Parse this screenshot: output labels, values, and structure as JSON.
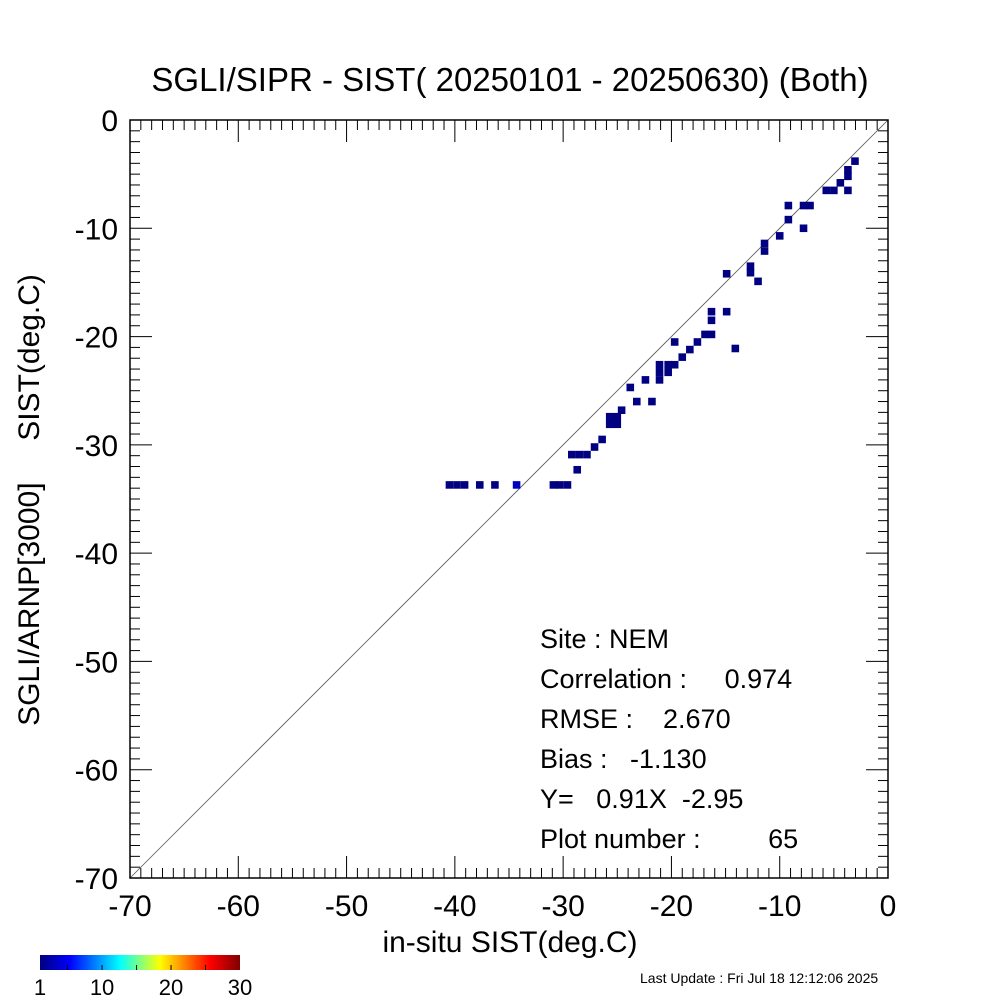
{
  "chart_data": {
    "type": "scatter",
    "title": "SGLI/SIPR - SIST( 20250101 - 20250630) (Both)",
    "xlabel": "in-situ SIST(deg.C)",
    "ylabel": "SGLI/ARNP[3000]     SIST(deg.C)",
    "xlim": [
      -70,
      0
    ],
    "ylim": [
      -70,
      0
    ],
    "xticks": [
      -70,
      -60,
      -50,
      -40,
      -30,
      -20,
      -10,
      0
    ],
    "yticks": [
      -70,
      -60,
      -50,
      -40,
      -30,
      -20,
      -10,
      0
    ],
    "xtick_labels": [
      "-70",
      "-60",
      "-50",
      "-40",
      "-30",
      "-20",
      "-10",
      "0"
    ],
    "ytick_labels": [
      "-70",
      "-60",
      "-50",
      "-40",
      "-30",
      "-20",
      "-10",
      "0"
    ],
    "grid": false,
    "reference_line": "1:1",
    "cell_size": 0.7,
    "point_color": "#000080",
    "point_color_bright": "#0000c0",
    "points": [
      [
        -3.05,
        -3.8
      ],
      [
        -3.7,
        -4.6
      ],
      [
        -3.7,
        -5.2
      ],
      [
        -4.4,
        -5.8
      ],
      [
        -3.7,
        -6.5
      ],
      [
        -5.7,
        -6.5
      ],
      [
        -5.0,
        -6.5
      ],
      [
        -7.2,
        -7.9
      ],
      [
        -7.8,
        -7.9
      ],
      [
        -9.2,
        -7.9
      ],
      [
        -9.2,
        -9.2
      ],
      [
        -7.8,
        -10.0
      ],
      [
        -10.0,
        -10.7
      ],
      [
        -11.4,
        -11.4
      ],
      [
        -11.4,
        -12.1
      ],
      [
        -12.7,
        -13.5
      ],
      [
        -12.7,
        -14.1
      ],
      [
        -12.0,
        -14.9
      ],
      [
        -14.9,
        -14.2
      ],
      [
        -14.9,
        -17.7
      ],
      [
        -16.3,
        -17.7
      ],
      [
        -16.3,
        -18.5
      ],
      [
        -14.1,
        -21.1
      ],
      [
        -16.3,
        -19.8
      ],
      [
        -16.9,
        -19.8
      ],
      [
        -17.6,
        -20.5
      ],
      [
        -18.3,
        -21.2
      ],
      [
        -19.0,
        -21.9
      ],
      [
        -19.7,
        -20.5
      ],
      [
        -19.7,
        -22.6
      ],
      [
        -20.3,
        -22.6
      ],
      [
        -21.1,
        -22.6
      ],
      [
        -20.3,
        -23.3
      ],
      [
        -21.1,
        -23.3
      ],
      [
        -21.1,
        -24.0
      ],
      [
        -22.4,
        -24.0
      ],
      [
        -21.8,
        -26.0
      ],
      [
        -23.2,
        -26.0
      ],
      [
        -23.8,
        -24.7
      ],
      [
        -24.6,
        -26.8
      ],
      [
        -25.7,
        -27.4
      ],
      [
        -25.0,
        -27.4
      ],
      [
        -25.7,
        -28.1
      ],
      [
        -25.0,
        -28.1
      ],
      [
        -26.4,
        -29.5
      ],
      [
        -27.1,
        -30.2
      ],
      [
        -27.8,
        -30.9
      ],
      [
        -28.5,
        -30.9
      ],
      [
        -29.2,
        -30.9
      ],
      [
        -28.7,
        -32.3
      ],
      [
        -29.6,
        -33.7
      ],
      [
        -30.3,
        -33.7
      ],
      [
        -30.9,
        -33.7
      ],
      [
        -39.1,
        -33.7
      ],
      [
        -39.8,
        -33.7
      ],
      [
        -40.5,
        -33.7
      ],
      [
        -37.7,
        -33.7
      ],
      [
        -36.3,
        -33.7
      ],
      [
        -34.3,
        -33.7,
        "b"
      ]
    ],
    "stats": {
      "site": "Site : NEM",
      "correlation": "Correlation :     0.974",
      "rmse": "RMSE :    2.670",
      "bias": "Bias :   -1.130",
      "fit": "Y=   0.91X  -2.95",
      "plot_number": "Plot number :         65"
    },
    "colorbar": {
      "range": [
        1,
        30
      ],
      "tick_labels": [
        "1",
        "10",
        "20",
        "30"
      ],
      "colors": [
        "#00007f",
        "#0000ff",
        "#00ffff",
        "#ffff00",
        "#ff0000",
        "#7f0000"
      ]
    }
  },
  "footer": {
    "last_update": "Last Update : Fri Jul 18 12:12:06 2025"
  }
}
